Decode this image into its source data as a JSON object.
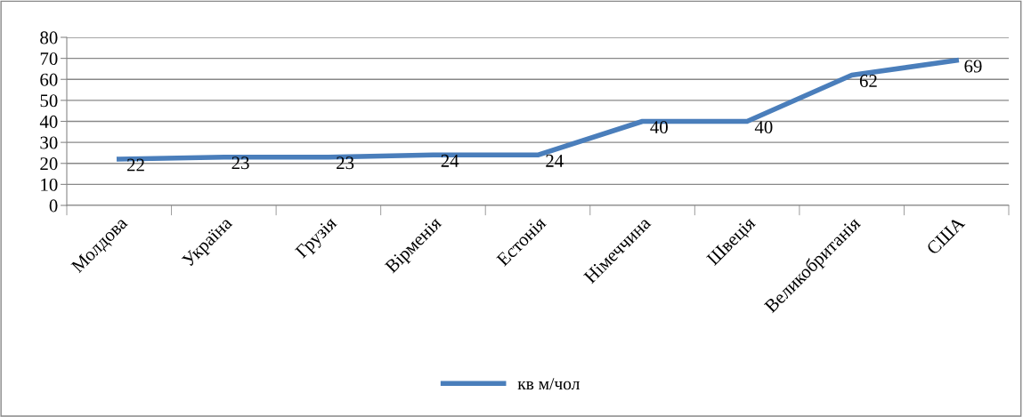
{
  "chart_data": {
    "type": "line",
    "categories": [
      "Молдова",
      "Україна",
      "Грузія",
      "Вірменія",
      "Естонія",
      "Німеччина",
      "Швеція",
      "Великобританія",
      "США"
    ],
    "series": [
      {
        "name": "кв м/чол",
        "color": "#4a7ebb",
        "values": [
          22,
          23,
          23,
          24,
          24,
          40,
          40,
          62,
          69
        ]
      }
    ],
    "ylim": [
      0,
      80
    ],
    "yticks": [
      0,
      10,
      20,
      30,
      40,
      50,
      60,
      70,
      80
    ],
    "grid": "y",
    "legend": "bottom",
    "data_labels": true,
    "marker": "none",
    "line_style": "solid"
  }
}
